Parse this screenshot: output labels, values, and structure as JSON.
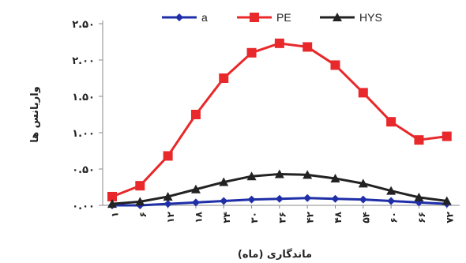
{
  "chart_data": {
    "type": "line",
    "title": "",
    "xlabel": "ماندگاری (ماه)",
    "ylabel": "واریانس ها",
    "categories": [
      "۱",
      "۶",
      "۱۲",
      "۱۸",
      "۲۴",
      "۳۰",
      "۳۶",
      "۴۲",
      "۴۸",
      "۵۴",
      "۶۰",
      "۶۶",
      "۷۲"
    ],
    "y_tick_labels": [
      "۰.۰۰",
      "۰.۵۰",
      "۱.۰۰",
      "۱.۵۰",
      "۲.۰۰",
      "۲.۵۰"
    ],
    "ylim": [
      0,
      2.5
    ],
    "y_ticks": [
      0,
      0.5,
      1.0,
      1.5,
      2.0,
      2.5
    ],
    "grid": false,
    "legend_position": "top",
    "series": [
      {
        "name": "a",
        "color": "#1f2fa8",
        "marker": "diamond",
        "values": [
          0.0,
          0.0,
          0.02,
          0.04,
          0.06,
          0.08,
          0.09,
          0.1,
          0.09,
          0.08,
          0.06,
          0.04,
          0.02
        ]
      },
      {
        "name": "PE",
        "color": "#e8282a",
        "marker": "square",
        "values": [
          0.12,
          0.27,
          0.68,
          1.25,
          1.75,
          2.1,
          2.23,
          2.18,
          1.93,
          1.55,
          1.15,
          0.9,
          0.95
        ]
      },
      {
        "name": "HYS",
        "color": "#222222",
        "marker": "triangle",
        "values": [
          0.02,
          0.05,
          0.12,
          0.22,
          0.32,
          0.4,
          0.43,
          0.42,
          0.37,
          0.3,
          0.2,
          0.11,
          0.06
        ]
      }
    ]
  }
}
